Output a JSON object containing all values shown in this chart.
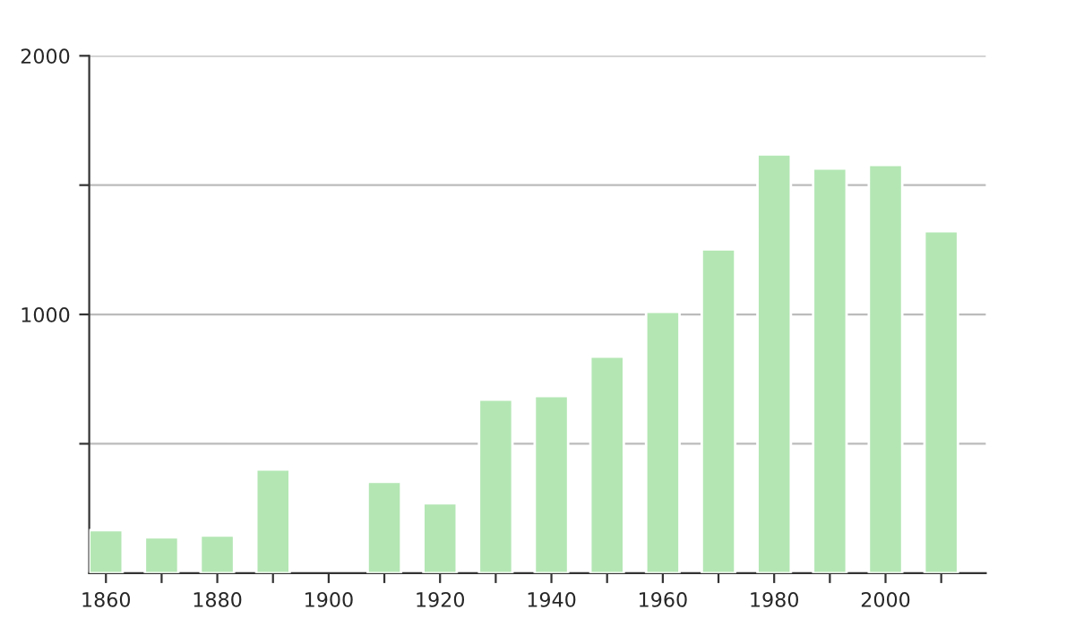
{
  "chart_data": {
    "type": "bar",
    "categories": [
      "1860",
      null,
      "1880",
      null,
      "1900",
      null,
      "1920",
      null,
      "1940",
      null,
      "1960",
      null,
      "1980",
      null,
      "2000",
      null
    ],
    "values": [
      166,
      138,
      145,
      401,
      null,
      353,
      270,
      671,
      685,
      837,
      1010,
      1252,
      1619,
      1564,
      1578,
      1322
    ],
    "color": "#b3e6b3",
    "ylim": [
      0,
      2000
    ],
    "yticks": [
      {
        "value": 500,
        "label": null
      },
      1000,
      {
        "value": 1500,
        "label": null
      },
      2000
    ],
    "grid": "y"
  }
}
